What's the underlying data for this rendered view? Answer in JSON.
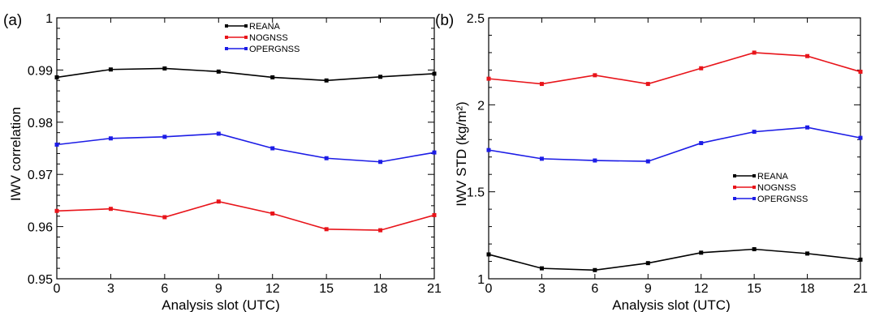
{
  "chart_data": [
    {
      "type": "line",
      "panel_label": "(a)",
      "xlabel": "Analysis slot (UTC)",
      "ylabel": "IWV correlation",
      "x": [
        0,
        3,
        6,
        9,
        12,
        15,
        18,
        21
      ],
      "xlim": [
        0,
        21
      ],
      "ylim": [
        0.95,
        1.0
      ],
      "x_ticks": [
        "0",
        "3",
        "6",
        "9",
        "12",
        "15",
        "18",
        "21"
      ],
      "y_ticks": [
        {
          "value": 0.95,
          "label": "0.95"
        },
        {
          "value": 0.96,
          "label": "0.96"
        },
        {
          "value": 0.97,
          "label": "0.97"
        },
        {
          "value": 0.98,
          "label": "0.98"
        },
        {
          "value": 0.99,
          "label": "0.99"
        },
        {
          "value": 1.0,
          "label": "1"
        }
      ],
      "grid": false,
      "legend_position": "top-center",
      "series": [
        {
          "name": "REANA",
          "color": "#000000",
          "values": [
            0.9886,
            0.9901,
            0.9903,
            0.9897,
            0.9886,
            0.988,
            0.9887,
            0.9893
          ]
        },
        {
          "name": "NOGNSS",
          "color": "#e8141a",
          "values": [
            0.963,
            0.9634,
            0.9618,
            0.9648,
            0.9625,
            0.9595,
            0.9593,
            0.9622
          ]
        },
        {
          "name": "OPERGNSS",
          "color": "#1c1ce6",
          "values": [
            0.9757,
            0.9769,
            0.9772,
            0.9778,
            0.975,
            0.9731,
            0.9724,
            0.9742
          ]
        }
      ]
    },
    {
      "type": "line",
      "panel_label": "(b)",
      "xlabel": "Analysis slot (UTC)",
      "ylabel": "IWV STD (kg/m²)",
      "x": [
        0,
        3,
        6,
        9,
        12,
        15,
        18,
        21
      ],
      "xlim": [
        0,
        21
      ],
      "ylim": [
        1.0,
        2.5
      ],
      "x_ticks": [
        "0",
        "3",
        "6",
        "9",
        "12",
        "15",
        "18",
        "21"
      ],
      "y_ticks": [
        {
          "value": 1.0,
          "label": "1"
        },
        {
          "value": 1.5,
          "label": "1.5"
        },
        {
          "value": 2.0,
          "label": "2"
        },
        {
          "value": 2.5,
          "label": "2.5"
        }
      ],
      "grid": false,
      "legend_position": "right-center",
      "series": [
        {
          "name": "REANA",
          "color": "#000000",
          "values": [
            1.14,
            1.06,
            1.05,
            1.09,
            1.15,
            1.17,
            1.145,
            1.11
          ]
        },
        {
          "name": "NOGNSS",
          "color": "#e8141a",
          "values": [
            2.15,
            2.12,
            2.17,
            2.12,
            2.21,
            2.3,
            2.28,
            2.19
          ]
        },
        {
          "name": "OPERGNSS",
          "color": "#1c1ce6",
          "values": [
            1.74,
            1.69,
            1.68,
            1.675,
            1.78,
            1.845,
            1.87,
            1.81
          ]
        }
      ]
    }
  ]
}
